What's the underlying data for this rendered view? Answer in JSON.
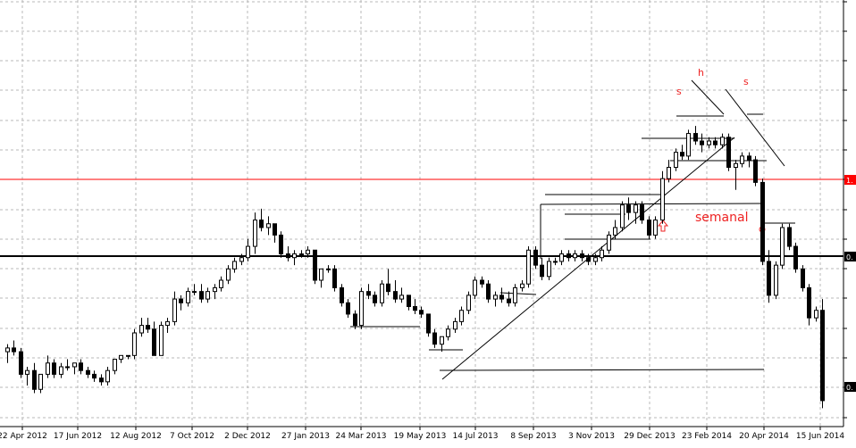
{
  "chart_data": {
    "type": "candlestick",
    "title": "",
    "timeframe": "weekly",
    "x_tick_labels": [
      "22 Apr 2012",
      "17 Jun 2012",
      "12 Aug 2012",
      "7 Oct 2012",
      "2 Dec 2012",
      "27 Jan 2013",
      "24 Mar 2013",
      "19 May 2013",
      "14 Jul 2013",
      "8 Sep 2013",
      "3 Nov 2013",
      "29 Dec 2013",
      "23 Feb 2014",
      "20 Apr 2014",
      "15 Jun 2014"
    ],
    "price_scale": {
      "decimals": 2,
      "visible": "partially cropped at right edge"
    },
    "horizontal_levels": [
      {
        "color": "#ff0000",
        "label": "1."
      },
      {
        "color": "#000000",
        "label": "0."
      }
    ],
    "last_price_label": "0.",
    "annotations": [
      "s",
      "h",
      "s",
      "semanal"
    ],
    "candles": [
      [
        0.73,
        0.75,
        0.7,
        0.74
      ],
      [
        0.74,
        0.76,
        0.72,
        0.73
      ],
      [
        0.73,
        0.74,
        0.66,
        0.67
      ],
      [
        0.67,
        0.69,
        0.64,
        0.68
      ],
      [
        0.68,
        0.7,
        0.62,
        0.63
      ],
      [
        0.63,
        0.67,
        0.62,
        0.67
      ],
      [
        0.67,
        0.72,
        0.66,
        0.7
      ],
      [
        0.7,
        0.71,
        0.66,
        0.67
      ],
      [
        0.67,
        0.7,
        0.66,
        0.69
      ],
      [
        0.69,
        0.71,
        0.68,
        0.69
      ],
      [
        0.69,
        0.7,
        0.67,
        0.7
      ],
      [
        0.7,
        0.71,
        0.67,
        0.68
      ],
      [
        0.68,
        0.69,
        0.66,
        0.67
      ],
      [
        0.67,
        0.68,
        0.65,
        0.66
      ],
      [
        0.66,
        0.67,
        0.64,
        0.65
      ],
      [
        0.65,
        0.69,
        0.64,
        0.68
      ],
      [
        0.68,
        0.71,
        0.67,
        0.71
      ],
      [
        0.71,
        0.72,
        0.7,
        0.72
      ],
      [
        0.72,
        0.72,
        0.71,
        0.72
      ],
      [
        0.72,
        0.79,
        0.71,
        0.78
      ],
      [
        0.78,
        0.82,
        0.77,
        0.8
      ],
      [
        0.8,
        0.82,
        0.78,
        0.79
      ],
      [
        0.79,
        0.81,
        0.72,
        0.72
      ],
      [
        0.72,
        0.81,
        0.72,
        0.8
      ],
      [
        0.8,
        0.82,
        0.78,
        0.81
      ],
      [
        0.81,
        0.89,
        0.8,
        0.87
      ],
      [
        0.87,
        0.88,
        0.84,
        0.86
      ],
      [
        0.86,
        0.9,
        0.85,
        0.89
      ],
      [
        0.89,
        0.91,
        0.88,
        0.89
      ],
      [
        0.89,
        0.91,
        0.86,
        0.87
      ],
      [
        0.87,
        0.9,
        0.86,
        0.89
      ],
      [
        0.89,
        0.91,
        0.87,
        0.9
      ],
      [
        0.9,
        0.93,
        0.89,
        0.92
      ],
      [
        0.92,
        0.96,
        0.91,
        0.95
      ],
      [
        0.95,
        0.98,
        0.94,
        0.97
      ],
      [
        0.97,
        0.99,
        0.96,
        0.98
      ],
      [
        0.98,
        1.03,
        0.97,
        1.01
      ],
      [
        1.01,
        1.1,
        0.99,
        1.08
      ],
      [
        1.08,
        1.11,
        1.05,
        1.06
      ],
      [
        1.06,
        1.09,
        1.04,
        1.07
      ],
      [
        1.07,
        1.07,
        1.02,
        1.04
      ],
      [
        1.04,
        1.05,
        0.98,
        0.99
      ],
      [
        0.99,
        1.01,
        0.97,
        0.98
      ],
      [
        0.98,
        1.0,
        0.96,
        0.99
      ],
      [
        0.99,
        1.0,
        0.98,
        0.99
      ],
      [
        0.99,
        1.01,
        0.98,
        1.0
      ],
      [
        1.0,
        1.0,
        0.91,
        0.92
      ],
      [
        0.92,
        0.95,
        0.9,
        0.95
      ],
      [
        0.95,
        0.96,
        0.94,
        0.95
      ],
      [
        0.95,
        0.96,
        0.89,
        0.9
      ],
      [
        0.9,
        0.91,
        0.85,
        0.86
      ],
      [
        0.86,
        0.87,
        0.82,
        0.83
      ],
      [
        0.83,
        0.84,
        0.79,
        0.8
      ],
      [
        0.8,
        0.9,
        0.79,
        0.89
      ],
      [
        0.89,
        0.91,
        0.87,
        0.88
      ],
      [
        0.88,
        0.89,
        0.85,
        0.86
      ],
      [
        0.86,
        0.92,
        0.85,
        0.91
      ],
      [
        0.91,
        0.95,
        0.88,
        0.89
      ],
      [
        0.89,
        0.92,
        0.86,
        0.87
      ],
      [
        0.87,
        0.9,
        0.86,
        0.88
      ],
      [
        0.88,
        0.88,
        0.84,
        0.85
      ],
      [
        0.85,
        0.87,
        0.83,
        0.84
      ],
      [
        0.84,
        0.85,
        0.82,
        0.83
      ],
      [
        0.83,
        0.83,
        0.77,
        0.78
      ],
      [
        0.78,
        0.79,
        0.74,
        0.75
      ],
      [
        0.75,
        0.77,
        0.73,
        0.77
      ],
      [
        0.77,
        0.8,
        0.76,
        0.79
      ],
      [
        0.79,
        0.82,
        0.78,
        0.81
      ],
      [
        0.81,
        0.85,
        0.8,
        0.84
      ],
      [
        0.84,
        0.89,
        0.83,
        0.88
      ],
      [
        0.88,
        0.93,
        0.87,
        0.92
      ],
      [
        0.92,
        0.93,
        0.9,
        0.91
      ],
      [
        0.91,
        0.92,
        0.86,
        0.87
      ],
      [
        0.87,
        0.89,
        0.85,
        0.88
      ],
      [
        0.88,
        0.9,
        0.86,
        0.87
      ],
      [
        0.87,
        0.89,
        0.85,
        0.86
      ],
      [
        0.86,
        0.91,
        0.85,
        0.9
      ],
      [
        0.9,
        0.92,
        0.89,
        0.91
      ],
      [
        0.91,
        1.01,
        0.9,
        1.0
      ],
      [
        1.0,
        1.01,
        0.95,
        0.96
      ],
      [
        0.96,
        0.98,
        0.92,
        0.93
      ],
      [
        0.93,
        0.98,
        0.92,
        0.97
      ],
      [
        0.97,
        0.98,
        0.96,
        0.97
      ],
      [
        0.97,
        1.0,
        0.96,
        0.99
      ],
      [
        0.99,
        1.0,
        0.97,
        0.98
      ],
      [
        0.98,
        1.0,
        0.97,
        0.99
      ],
      [
        0.99,
        1.0,
        0.97,
        0.98
      ],
      [
        0.98,
        0.99,
        0.96,
        0.97
      ],
      [
        0.97,
        0.99,
        0.96,
        0.98
      ],
      [
        0.98,
        1.01,
        0.97,
        1.0
      ],
      [
        1.0,
        1.05,
        0.99,
        1.04
      ],
      [
        1.04,
        1.08,
        1.03,
        1.06
      ],
      [
        1.06,
        1.13,
        1.05,
        1.12
      ],
      [
        1.12,
        1.14,
        1.08,
        1.1
      ],
      [
        1.1,
        1.13,
        1.07,
        1.12
      ],
      [
        1.12,
        1.13,
        1.07,
        1.08
      ],
      [
        1.08,
        1.09,
        1.03,
        1.04
      ],
      [
        1.04,
        1.09,
        1.03,
        1.08
      ],
      [
        1.08,
        1.21,
        1.07,
        1.19
      ],
      [
        1.19,
        1.24,
        1.18,
        1.22
      ],
      [
        1.22,
        1.27,
        1.21,
        1.26
      ],
      [
        1.26,
        1.28,
        1.24,
        1.25
      ],
      [
        1.25,
        1.32,
        1.24,
        1.31
      ],
      [
        1.31,
        1.33,
        1.28,
        1.29
      ],
      [
        1.29,
        1.31,
        1.26,
        1.28
      ],
      [
        1.28,
        1.3,
        1.27,
        1.29
      ],
      [
        1.29,
        1.3,
        1.27,
        1.28
      ],
      [
        1.28,
        1.31,
        1.27,
        1.3
      ],
      [
        1.3,
        1.31,
        1.21,
        1.22
      ],
      [
        1.22,
        1.24,
        1.16,
        1.23
      ],
      [
        1.23,
        1.26,
        1.22,
        1.25
      ],
      [
        1.25,
        1.26,
        1.22,
        1.24
      ],
      [
        1.24,
        1.25,
        1.17,
        1.18
      ],
      [
        1.18,
        1.19,
        0.96,
        0.97
      ],
      [
        0.97,
        1.0,
        0.86,
        0.88
      ],
      [
        0.88,
        0.97,
        0.87,
        0.96
      ],
      [
        0.96,
        1.07,
        0.95,
        1.06
      ],
      [
        1.06,
        1.07,
        1.0,
        1.01
      ],
      [
        1.01,
        1.02,
        0.94,
        0.95
      ],
      [
        0.95,
        0.96,
        0.89,
        0.9
      ],
      [
        0.9,
        0.91,
        0.8,
        0.82
      ],
      [
        0.82,
        0.85,
        0.81,
        0.84
      ],
      [
        0.84,
        0.87,
        0.58,
        0.6
      ]
    ]
  }
}
